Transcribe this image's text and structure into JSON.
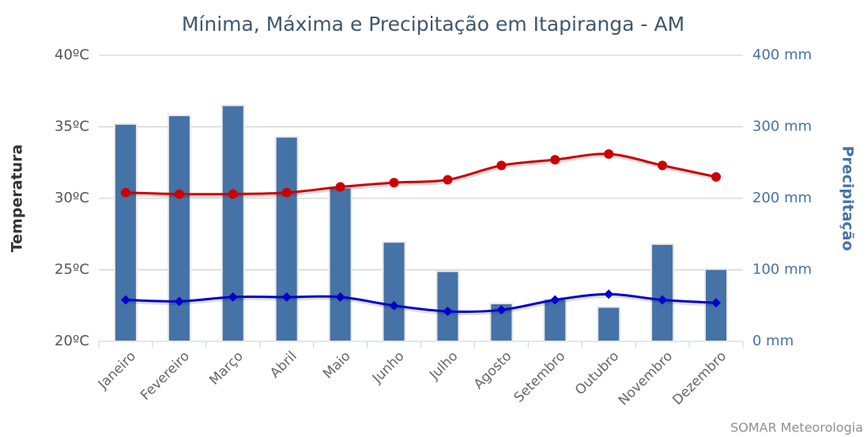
{
  "chart_data": {
    "type": "bar",
    "title": "Mínima, Máxima e Precipitação em Itapiranga - AM",
    "credit": "SOMAR Meteorologia",
    "y_label": "Temperatura",
    "y2_label": "Precipitação",
    "categories": [
      "Janeiro",
      "Fevereiro",
      "Março",
      "Abril",
      "Maio",
      "Junho",
      "Julho",
      "Agosto",
      "Setembro",
      "Outubro",
      "Novembro",
      "Dezembro"
    ],
    "ylim": [
      20,
      40
    ],
    "yticks": [
      {
        "value": 20,
        "label": "20ºC"
      },
      {
        "value": 25,
        "label": "25ºC"
      },
      {
        "value": 30,
        "label": "30ºC"
      },
      {
        "value": 35,
        "label": "35ºC"
      },
      {
        "value": 40,
        "label": "40ºC"
      }
    ],
    "y2lim": [
      0,
      400
    ],
    "y2ticks": [
      {
        "value": 0,
        "label": "0 mm"
      },
      {
        "value": 100,
        "label": "100 mm"
      },
      {
        "value": 200,
        "label": "200 mm"
      },
      {
        "value": 300,
        "label": "300 mm"
      },
      {
        "value": 400,
        "label": "400 mm"
      }
    ],
    "grid": true,
    "series": [
      {
        "type": "bar",
        "axis": "y2",
        "color": "#4572a7",
        "values": [
          304,
          316,
          330,
          286,
          215,
          139,
          98,
          53,
          59,
          48,
          136,
          101
        ]
      },
      {
        "type": "line",
        "color": "#cc0000",
        "values": [
          30.4,
          30.3,
          30.3,
          30.4,
          30.8,
          31.1,
          31.3,
          32.3,
          32.7,
          33.1,
          32.3,
          31.5
        ]
      },
      {
        "type": "line",
        "color": "#0000cc",
        "values": [
          22.9,
          22.8,
          23.1,
          23.1,
          23.1,
          22.5,
          22.1,
          22.2,
          22.9,
          23.3,
          22.9,
          22.7
        ]
      }
    ]
  }
}
